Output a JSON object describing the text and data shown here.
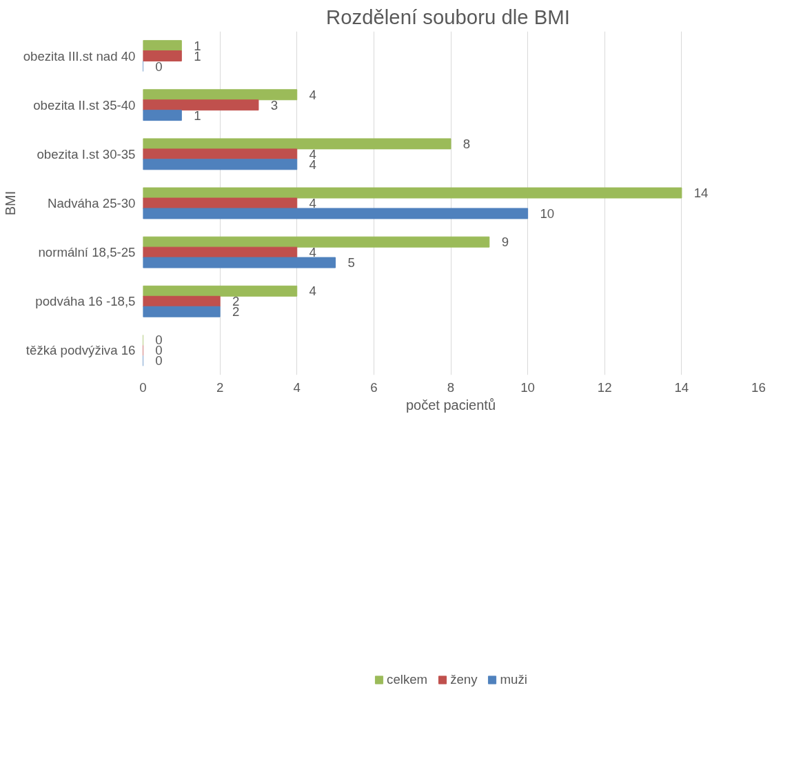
{
  "chart_data": {
    "type": "bar",
    "orientation": "horizontal",
    "title": "Rozdělení souboru dle  BMI",
    "xlabel": "počet pacientů",
    "ylabel": "BMI",
    "categories": [
      "obezita III.st nad 40",
      "obezita II.st 35-40",
      "obezita I.st 30-35",
      "Nadváha 25-30",
      "normální 18,5-25",
      "podváha 16 -18,5",
      "těžká podvýživa 16"
    ],
    "series": [
      {
        "name": "celkem",
        "color": "#9bbb59",
        "values": [
          1,
          4,
          8,
          14,
          9,
          4,
          0
        ]
      },
      {
        "name": "ženy",
        "color": "#c0504d",
        "values": [
          1,
          3,
          4,
          4,
          4,
          2,
          0
        ]
      },
      {
        "name": "muži",
        "color": "#4f81bd",
        "values": [
          0,
          1,
          4,
          10,
          5,
          2,
          0
        ]
      }
    ],
    "xlim": [
      0,
      16
    ],
    "xticks": [
      0,
      2,
      4,
      6,
      8,
      10,
      12,
      14,
      16
    ],
    "grid": "x",
    "legend": "bottom",
    "data_labels": true
  }
}
